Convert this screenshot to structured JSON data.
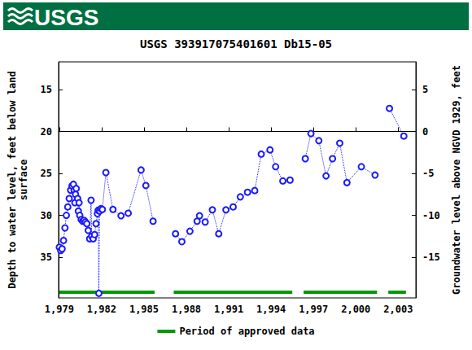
{
  "header": {
    "logo_text": "USGS"
  },
  "chart_data": {
    "type": "line",
    "title": "USGS 393917075401601 Db15-05",
    "y_label": "Depth to water level, feet below land\nsurface",
    "y2_label": "Groundwater level above NGVD 1929, feet",
    "xlim": [
      1978.95,
      2004.25
    ],
    "xticks": [
      1979,
      1982,
      1985,
      1988,
      1991,
      1994,
      1997,
      2000,
      2003
    ],
    "ylim": [
      11.7,
      39.85
    ],
    "yticks": [
      15,
      20,
      25,
      30,
      35
    ],
    "y2lim": [
      -19.85,
      8.3
    ],
    "y2ticks": [
      -15,
      -10,
      -5,
      0,
      5
    ],
    "grid": false,
    "x": [
      1979.0,
      1979.1,
      1979.2,
      1979.3,
      1979.4,
      1979.5,
      1979.6,
      1979.7,
      1979.8,
      1979.9,
      1980.0,
      1980.05,
      1980.1,
      1980.15,
      1980.2,
      1980.3,
      1980.35,
      1980.4,
      1980.45,
      1980.55,
      1980.65,
      1980.75,
      1980.85,
      1980.95,
      1981.05,
      1981.15,
      1981.25,
      1981.3,
      1981.4,
      1981.5,
      1981.6,
      1981.7,
      1981.75,
      1981.8,
      1981.85,
      1981.95,
      1982.05,
      1982.3,
      1982.8,
      1983.37,
      1983.88,
      1984.79,
      1985.13,
      1985.64,
      1986.4,
      1987.23,
      1987.68,
      1988.25,
      1988.76,
      1988.93,
      1989.33,
      1989.84,
      1990.29,
      1990.8,
      1991.31,
      1991.82,
      1992.33,
      1992.84,
      1993.3,
      1993.92,
      1994.32,
      1994.83,
      1995.34,
      1995.9,
      1996.42,
      1996.82,
      1997.38,
      1997.89,
      1998.35,
      1998.86,
      1999.37,
      2000.39,
      2001.36,
      2001.9,
      2002.38,
      2003.4
    ],
    "series": [
      {
        "color": "#1a1aff",
        "marker": "emptyCircle",
        "line_style": "dotted",
        "values": [
          33.8,
          34.2,
          34.0,
          33.0,
          31.5,
          30.0,
          29.0,
          28.0,
          27.0,
          26.5,
          26.3,
          27.0,
          28.5,
          27.5,
          26.8,
          28.0,
          29.5,
          28.5,
          30.0,
          30.5,
          30.7,
          30.6,
          30.8,
          31.0,
          31.8,
          32.8,
          28.2,
          32.5,
          32.8,
          32.3,
          31.0,
          29.8,
          29.4,
          39.3,
          29.5,
          29.2,
          29.3,
          24.9,
          29.3,
          30.05,
          29.75,
          24.6,
          26.45,
          30.7,
          null,
          32.2,
          33.15,
          31.9,
          30.7,
          30.05,
          30.8,
          29.35,
          32.2,
          29.35,
          29.0,
          27.8,
          27.25,
          27.05,
          22.7,
          22.2,
          24.2,
          25.9,
          25.8,
          null,
          23.25,
          20.25,
          21.1,
          25.3,
          23.25,
          21.4,
          26.1,
          24.2,
          25.2,
          null,
          17.25,
          20.55
        ]
      }
    ],
    "approved": {
      "name": "Period of approved data",
      "color": "#009900",
      "periods": [
        [
          1979.0,
          1985.75
        ],
        [
          1987.1,
          1995.5
        ],
        [
          1996.3,
          2001.5
        ],
        [
          2002.3,
          2003.55
        ]
      ]
    },
    "legend": "bottom"
  }
}
